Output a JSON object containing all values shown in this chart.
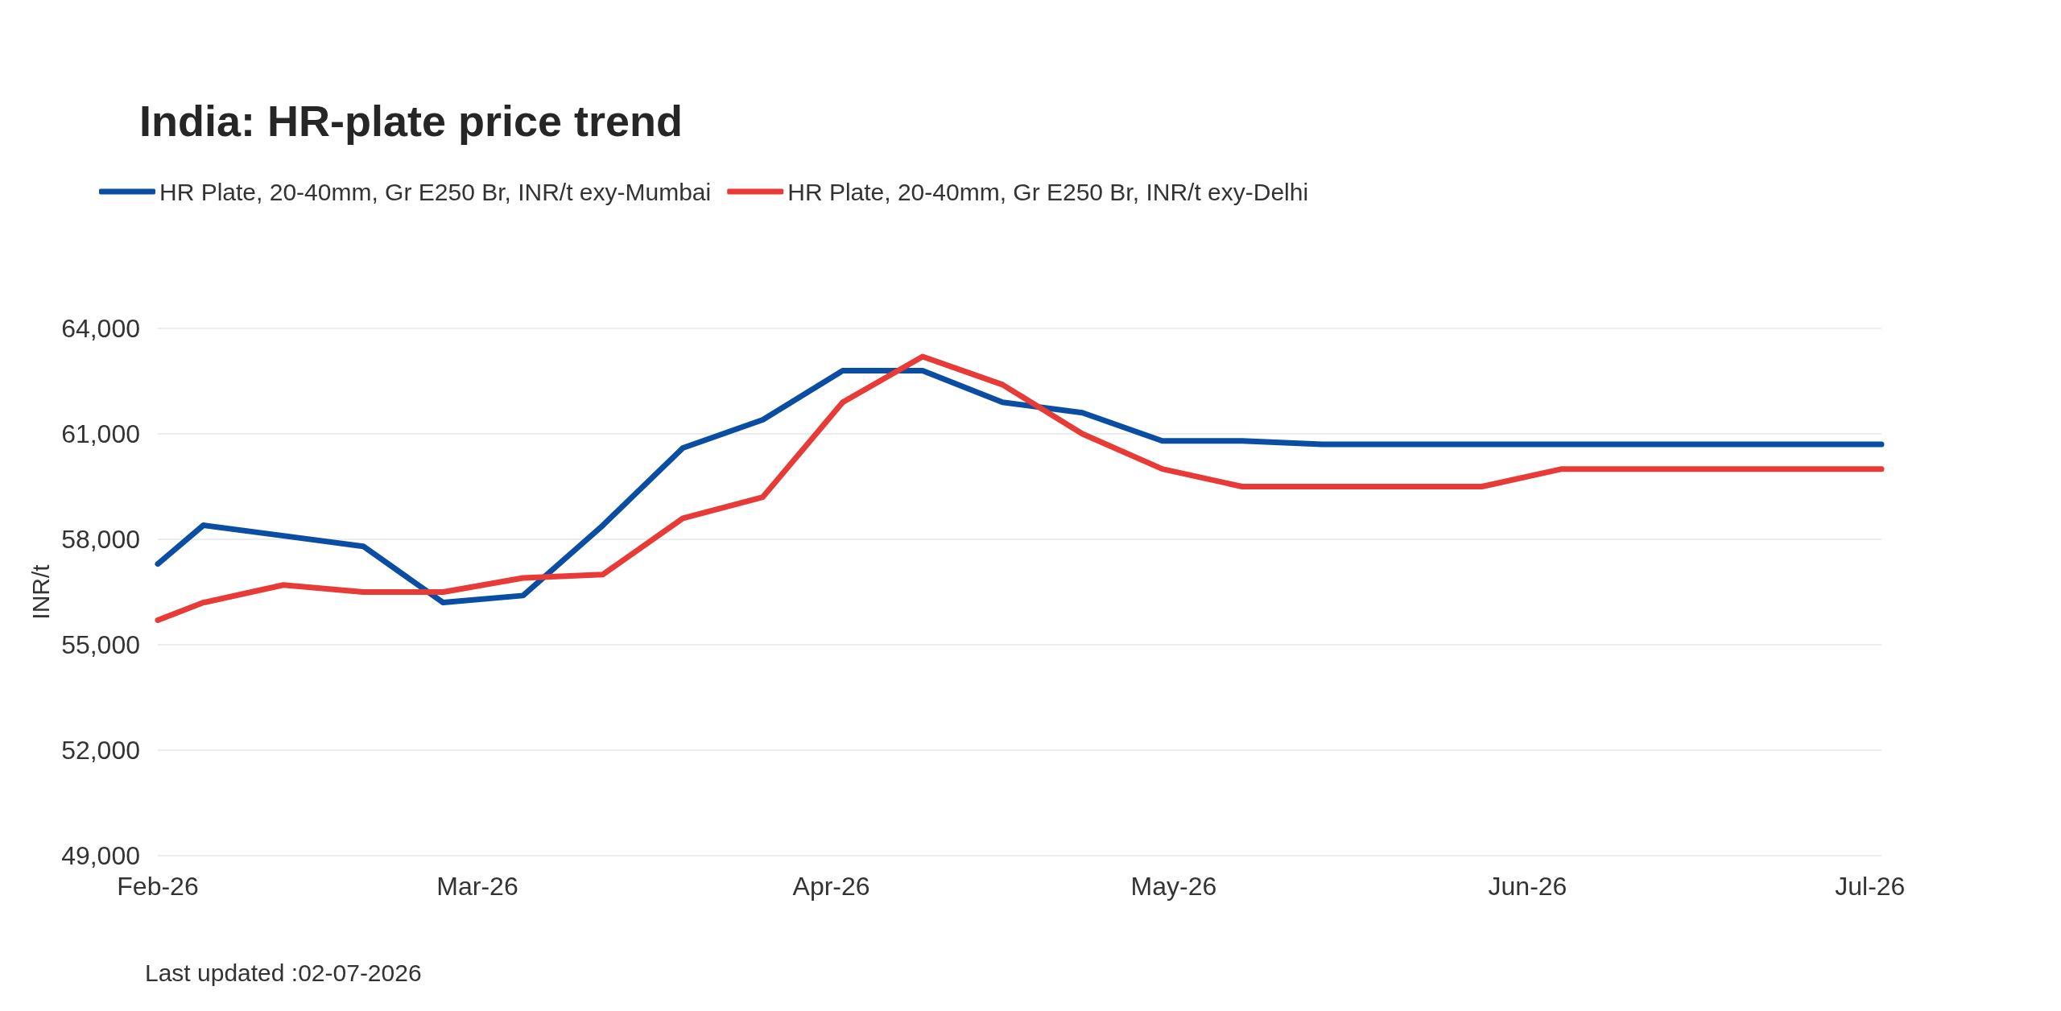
{
  "chart_data": {
    "type": "line",
    "title": "India: HR-plate price trend",
    "ylabel": "INR/t",
    "x": [
      "2026-02-01",
      "2026-02-05",
      "2026-02-12",
      "2026-02-19",
      "2026-02-26",
      "2026-03-05",
      "2026-03-12",
      "2026-03-19",
      "2026-03-26",
      "2026-04-02",
      "2026-04-09",
      "2026-04-16",
      "2026-04-23",
      "2026-04-30",
      "2026-05-07",
      "2026-05-14",
      "2026-05-21",
      "2026-05-28",
      "2026-06-04",
      "2026-06-11",
      "2026-06-18",
      "2026-06-25",
      "2026-07-02"
    ],
    "series": [
      {
        "name": "HR Plate, 20-40mm, Gr E250 Br, INR/t exy-Mumbai",
        "color": "#0a4ea3",
        "values": [
          57300,
          58400,
          58100,
          57800,
          56200,
          56400,
          58400,
          60600,
          61400,
          62800,
          62800,
          61900,
          61600,
          60800,
          60800,
          60700,
          60700,
          60700,
          60700,
          60700,
          60700,
          60700,
          60700
        ]
      },
      {
        "name": "HR Plate, 20-40mm, Gr E250 Br, INR/t exy-Delhi",
        "color": "#e83a36",
        "values": [
          55700,
          56200,
          56700,
          56500,
          56500,
          56900,
          57000,
          58600,
          59200,
          61900,
          63200,
          62400,
          61000,
          60000,
          59500,
          59500,
          59500,
          59500,
          60000,
          60000,
          60000,
          60000,
          60000
        ]
      }
    ],
    "xlim": [
      "2026-02-01",
      "2026-07-02"
    ],
    "xticks": [
      {
        "value": "2026-02-01",
        "label": "Feb-26"
      },
      {
        "value": "2026-03-01",
        "label": "Mar-26"
      },
      {
        "value": "2026-04-01",
        "label": "Apr-26"
      },
      {
        "value": "2026-05-01",
        "label": "May-26"
      },
      {
        "value": "2026-06-01",
        "label": "Jun-26"
      },
      {
        "value": "2026-07-01",
        "label": "Jul-26"
      }
    ],
    "ylim": [
      49000,
      64000
    ],
    "yticks": [
      {
        "value": 49000,
        "label": "49,000"
      },
      {
        "value": 52000,
        "label": "52,000"
      },
      {
        "value": 55000,
        "label": "55,000"
      },
      {
        "value": 58000,
        "label": "58,000"
      },
      {
        "value": 61000,
        "label": "61,000"
      },
      {
        "value": 64000,
        "label": "64,000"
      }
    ],
    "grid": "y",
    "legend": "top left",
    "annotations": [
      "Last updated :02-07-2026"
    ]
  }
}
